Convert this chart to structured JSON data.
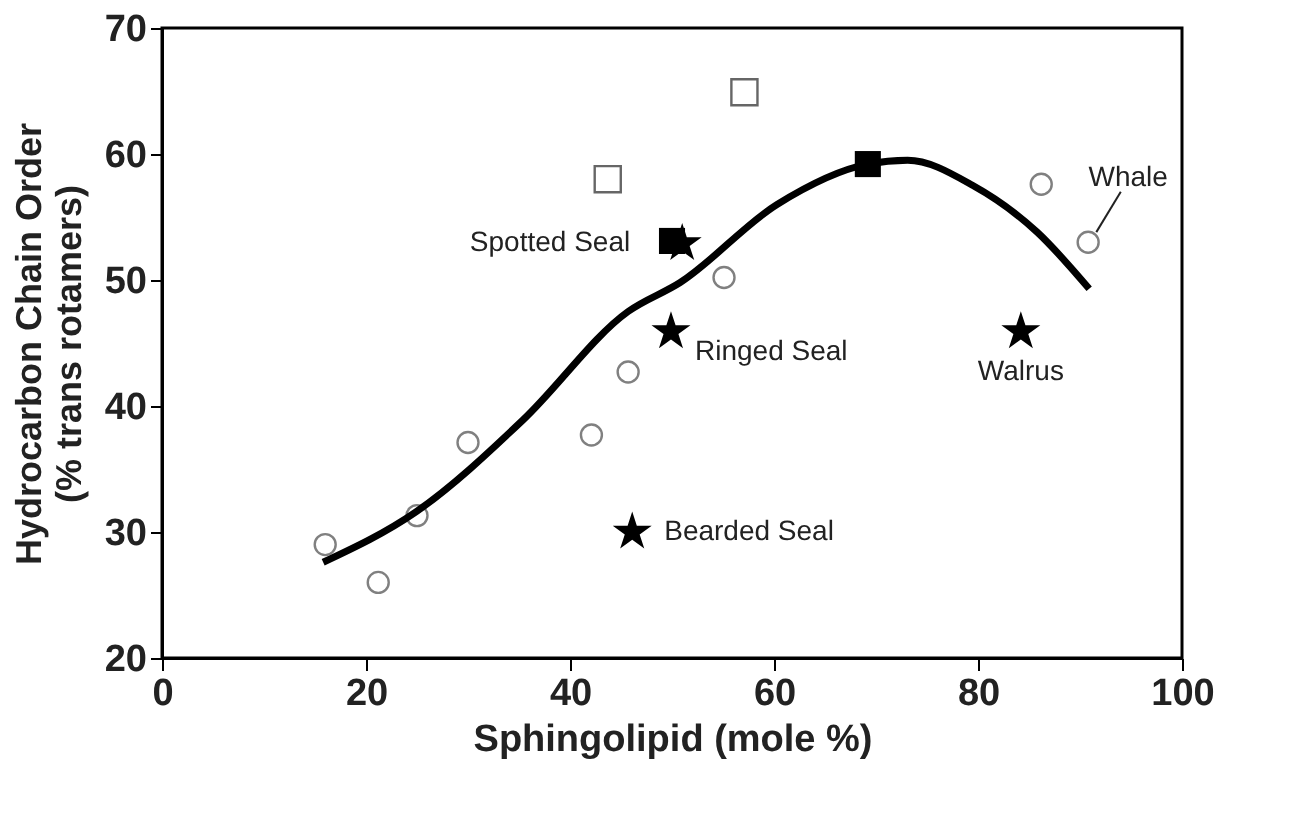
{
  "chart_data": {
    "type": "scatter",
    "xlabel": "Sphingolipid (mole %)",
    "ylabel": "Hydrocarbon Chain Order\n(% trans rotamers)",
    "xlim": [
      0,
      100
    ],
    "xticks": [
      0,
      20,
      40,
      60,
      80,
      100
    ],
    "ylim": [
      20,
      70
    ],
    "yticks": [
      20,
      30,
      40,
      50,
      60,
      70
    ],
    "grid": false,
    "series": [
      {
        "marker": "circle",
        "color": "#808080",
        "x": [
          16.0,
          21.2,
          25.0,
          30.0,
          42.1,
          45.7,
          55.1,
          86.2,
          90.8
        ],
        "values": [
          29.0,
          26.0,
          31.3,
          37.1,
          37.7,
          42.7,
          50.2,
          57.6,
          53.0
        ]
      },
      {
        "marker": "square",
        "color": "#666666",
        "x": [
          43.7,
          57.1
        ],
        "values": [
          58.0,
          64.9
        ]
      },
      {
        "type": "line",
        "color": "#000000",
        "line_style": "solid",
        "x": [
          15.8,
          24.9,
          35.4,
          45.7,
          50.8,
          60.3,
          69.2,
          73.1,
          79.5,
          85.8,
          90.9
        ],
        "values": [
          27.6,
          31.6,
          38.9,
          47.5,
          49.8,
          56.0,
          59.2,
          59.5,
          57.5,
          53.8,
          49.3
        ]
      },
      {
        "marker": "square",
        "color": "#000000",
        "x": [
          50.0,
          69.2
        ],
        "values": [
          53.1,
          59.2
        ]
      },
      {
        "marker": "star",
        "color": "#000000",
        "x": [
          51.0,
          49.9,
          46.1,
          84.2
        ],
        "values": [
          52.9,
          45.9,
          30.0,
          45.9
        ]
      }
    ],
    "annotations": [
      {
        "text": "Spotted Seal",
        "x": 51.0,
        "y": 52.9
      },
      {
        "text": "Ringed Seal",
        "x": 49.9,
        "y": 45.9
      },
      {
        "text": "Bearded Seal",
        "x": 46.1,
        "y": 30.0
      },
      {
        "text": "Walrus",
        "x": 84.2,
        "y": 45.9
      },
      {
        "text": "Whale",
        "x": 90.8,
        "y": 53.0
      }
    ]
  }
}
